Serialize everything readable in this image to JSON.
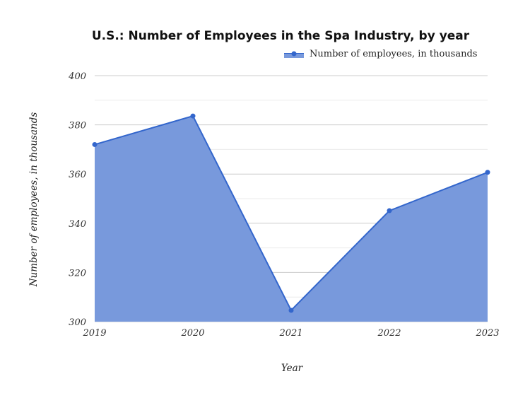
{
  "chart_data": {
    "type": "area",
    "title": "U.S.: Number of Employees in the Spa Industry, by year",
    "xlabel": "Year",
    "ylabel": "Number of employees, in thousands",
    "categories": [
      "2019",
      "2020",
      "2021",
      "2022",
      "2023"
    ],
    "series": [
      {
        "name": "Number of employees, in thousands",
        "values": [
          372,
          383.6,
          304.6,
          345.1,
          360.7
        ]
      }
    ],
    "ylim": [
      300,
      400
    ],
    "yticks": [
      300,
      320,
      340,
      360,
      380,
      400
    ],
    "grid": true,
    "legend": "top-right",
    "colors": {
      "fill": "#7899dc",
      "line": "#3366cc"
    }
  }
}
